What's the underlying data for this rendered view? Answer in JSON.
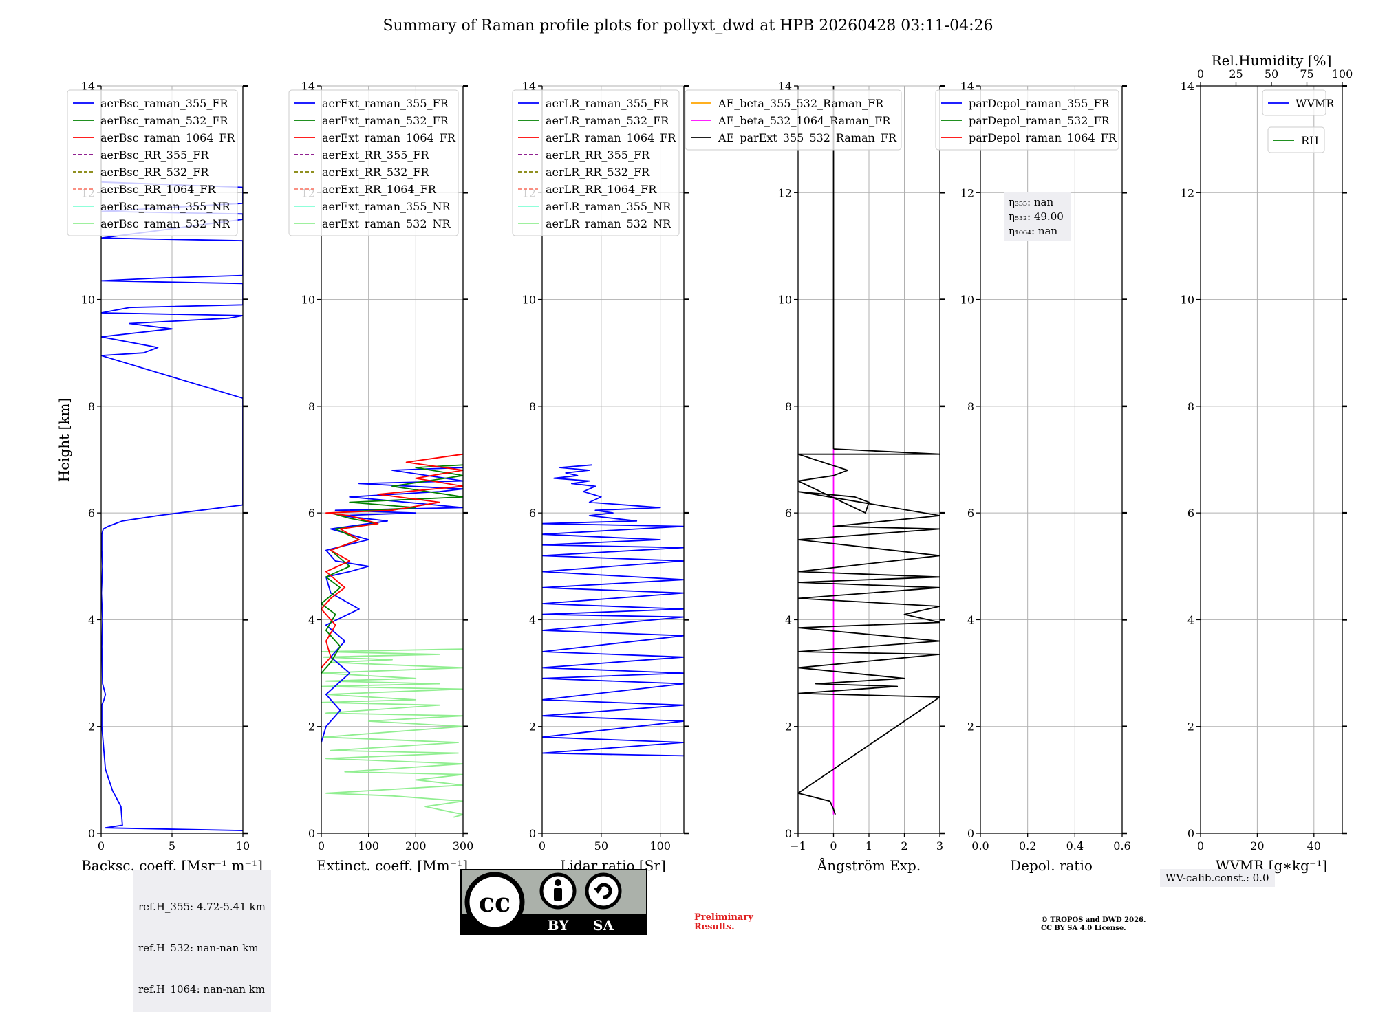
{
  "title": "Summary of Raman profile plots for pollyxt_dwd at HPB 20260428 03:11-04:26",
  "y_label": "Height [km]",
  "colors": {
    "blue": "#0000ff",
    "green": "#008000",
    "red": "#ff0000",
    "purple": "#800080",
    "olive": "#808000",
    "salmon": "#fa8072",
    "cyan": "#7fffd4",
    "lightgreen": "#90ee90",
    "orange": "#ffa500",
    "magenta": "#ff00ff",
    "black": "#000000"
  },
  "chart_data": [
    {
      "type": "line",
      "id": "bsc",
      "xlabel": "Backsc. coeff. [Msr$^{-1}$ m$^{-1}$]",
      "xlabel_display": "Backsc. coeff. [Msr⁻¹ m⁻¹]",
      "xlim": [
        0,
        10
      ],
      "xticks": [
        0,
        5,
        10
      ],
      "xtick_labels": [
        "0",
        "5",
        "10"
      ],
      "ylim": [
        0,
        14
      ],
      "yticks": [
        0,
        2,
        4,
        6,
        8,
        10,
        12,
        14
      ],
      "legend": [
        {
          "label": "aerBsc_raman_355_FR",
          "color": "#0000ff",
          "dash": false
        },
        {
          "label": "aerBsc_raman_532_FR",
          "color": "#008000",
          "dash": false
        },
        {
          "label": "aerBsc_raman_1064_FR",
          "color": "#ff0000",
          "dash": false
        },
        {
          "label": "aerBsc_RR_355_FR",
          "color": "#800080",
          "dash": true
        },
        {
          "label": "aerBsc_RR_532_FR",
          "color": "#808000",
          "dash": true
        },
        {
          "label": "aerBsc_RR_1064_FR",
          "color": "#fa8072",
          "dash": true
        },
        {
          "label": "aerBsc_raman_355_NR",
          "color": "#7fffd4",
          "dash": false
        },
        {
          "label": "aerBsc_raman_532_NR",
          "color": "#90ee90",
          "dash": false
        }
      ],
      "series": [
        {
          "name": "aerBsc_raman_355_FR",
          "color": "#0000ff",
          "x": [
            10,
            0.3,
            1.5,
            1.4,
            0.8,
            0.3,
            0.05,
            0.05,
            0.2,
            0.3,
            0.1,
            0.05,
            0.1,
            0.02,
            0.1,
            0.05,
            0.05,
            0.15,
            0.5,
            1.5,
            4,
            7,
            10,
            10,
            10,
            0,
            3,
            4,
            0,
            5,
            2,
            9,
            10,
            0,
            2,
            10,
            10,
            0,
            4,
            10,
            10,
            0,
            10,
            10,
            0,
            10,
            10,
            0
          ],
          "y": [
            0.05,
            0.1,
            0.15,
            0.5,
            0.8,
            1.2,
            2.0,
            2.4,
            2.5,
            2.6,
            2.8,
            3.5,
            4.0,
            4.5,
            5.0,
            5.3,
            5.6,
            5.7,
            5.75,
            5.85,
            5.95,
            6.05,
            6.15,
            8.1,
            8.15,
            8.95,
            9.0,
            9.1,
            9.3,
            9.45,
            9.55,
            9.65,
            9.7,
            9.75,
            9.85,
            9.9,
            10.3,
            10.35,
            10.4,
            10.45,
            11.1,
            11.15,
            11.5,
            11.6,
            11.65,
            11.8,
            12.1,
            12.2
          ]
        }
      ]
    },
    {
      "type": "line",
      "id": "ext",
      "xlabel": "Extinct. coeff. [Mm$^{-1}$]",
      "xlabel_display": "Extinct. coeff. [Mm⁻¹]",
      "xlim": [
        0,
        300
      ],
      "xticks": [
        0,
        100,
        200,
        300
      ],
      "xtick_labels": [
        "0",
        "100",
        "200",
        "300"
      ],
      "ylim": [
        0,
        14
      ],
      "yticks": [
        0,
        2,
        4,
        6,
        8,
        10,
        12,
        14
      ],
      "legend": [
        {
          "label": "aerExt_raman_355_FR",
          "color": "#0000ff",
          "dash": false
        },
        {
          "label": "aerExt_raman_532_FR",
          "color": "#008000",
          "dash": false
        },
        {
          "label": "aerExt_raman_1064_FR",
          "color": "#ff0000",
          "dash": false
        },
        {
          "label": "aerExt_RR_355_FR",
          "color": "#800080",
          "dash": true
        },
        {
          "label": "aerExt_RR_532_FR",
          "color": "#808000",
          "dash": true
        },
        {
          "label": "aerExt_RR_1064_FR",
          "color": "#fa8072",
          "dash": true
        },
        {
          "label": "aerExt_raman_355_NR",
          "color": "#7fffd4",
          "dash": false
        },
        {
          "label": "aerExt_raman_532_NR",
          "color": "#90ee90",
          "dash": false
        }
      ],
      "series": [
        {
          "name": "aerExt_raman_532_NR",
          "color": "#90ee90",
          "x": [
            280,
            300,
            220,
            300,
            150,
            10,
            300,
            200,
            300,
            50,
            300,
            10,
            290,
            20,
            290,
            5,
            300,
            100,
            300,
            10,
            250,
            0,
            200,
            10,
            300,
            0,
            250,
            10,
            200,
            0,
            300,
            20,
            150,
            5,
            250,
            0,
            300
          ],
          "y": [
            0.3,
            0.35,
            0.5,
            0.6,
            0.7,
            0.75,
            0.9,
            1.0,
            1.1,
            1.15,
            1.3,
            1.4,
            1.5,
            1.55,
            1.7,
            1.8,
            2.0,
            2.1,
            2.2,
            2.25,
            2.4,
            2.45,
            2.5,
            2.6,
            2.7,
            2.75,
            2.8,
            2.85,
            2.9,
            3.0,
            3.1,
            3.2,
            3.25,
            3.3,
            3.35,
            3.4,
            3.45
          ]
        },
        {
          "name": "aerExt_raman_355_FR",
          "color": "#0000ff",
          "x": [
            0,
            10,
            40,
            10,
            60,
            20,
            50,
            10,
            80,
            20,
            10,
            60,
            100,
            30,
            10,
            100,
            20,
            140,
            40,
            200,
            30,
            300,
            60,
            250,
            300,
            80,
            300,
            150,
            300
          ],
          "y": [
            1.7,
            2.0,
            2.3,
            2.6,
            3.0,
            3.3,
            3.6,
            3.9,
            4.2,
            4.5,
            4.8,
            4.9,
            5.0,
            5.1,
            5.3,
            5.5,
            5.7,
            5.85,
            5.95,
            6.0,
            6.05,
            6.1,
            6.3,
            6.4,
            6.45,
            6.55,
            6.6,
            6.8,
            6.85
          ]
        },
        {
          "name": "aerExt_raman_532_FR",
          "color": "#008000",
          "x": [
            0,
            20,
            40,
            10,
            30,
            0,
            40,
            10,
            60,
            20,
            80,
            30,
            120,
            60,
            20,
            200,
            60,
            300,
            150,
            300,
            200,
            300
          ],
          "y": [
            3.0,
            3.2,
            3.5,
            3.8,
            4.1,
            4.3,
            4.6,
            4.8,
            5.0,
            5.3,
            5.5,
            5.7,
            5.8,
            5.9,
            6.0,
            6.1,
            6.2,
            6.3,
            6.5,
            6.7,
            6.85,
            6.9
          ]
        },
        {
          "name": "aerExt_raman_1064_FR",
          "color": "#ff0000",
          "x": [
            0,
            20,
            10,
            30,
            0,
            20,
            50,
            10,
            60,
            20,
            80,
            40,
            120,
            60,
            10,
            150,
            250,
            120,
            300,
            200,
            300,
            180,
            300
          ],
          "y": [
            3.1,
            3.3,
            3.6,
            3.9,
            4.2,
            4.4,
            4.6,
            4.9,
            5.1,
            5.3,
            5.5,
            5.7,
            5.8,
            5.95,
            6.0,
            6.05,
            6.2,
            6.35,
            6.5,
            6.65,
            6.8,
            6.95,
            7.1
          ]
        }
      ]
    },
    {
      "type": "line",
      "id": "lr",
      "xlabel": "Lidar ratio [Sr]",
      "xlim": [
        0,
        120
      ],
      "xticks": [
        0,
        50,
        100
      ],
      "xtick_labels": [
        "0",
        "50",
        "100"
      ],
      "ylim": [
        0,
        14
      ],
      "yticks": [
        0,
        2,
        4,
        6,
        8,
        10,
        12,
        14
      ],
      "legend": [
        {
          "label": "aerLR_raman_355_FR",
          "color": "#0000ff",
          "dash": false
        },
        {
          "label": "aerLR_raman_532_FR",
          "color": "#008000",
          "dash": false
        },
        {
          "label": "aerLR_raman_1064_FR",
          "color": "#ff0000",
          "dash": false
        },
        {
          "label": "aerLR_RR_355_FR",
          "color": "#800080",
          "dash": true
        },
        {
          "label": "aerLR_RR_532_FR",
          "color": "#808000",
          "dash": true
        },
        {
          "label": "aerLR_RR_1064_FR",
          "color": "#fa8072",
          "dash": true
        },
        {
          "label": "aerLR_raman_355_NR",
          "color": "#7fffd4",
          "dash": false
        },
        {
          "label": "aerLR_raman_532_NR",
          "color": "#90ee90",
          "dash": false
        }
      ],
      "series": [
        {
          "name": "aerLR_raman_355_FR",
          "color": "#0000ff",
          "x": [
            120,
            0,
            120,
            0,
            120,
            0,
            120,
            0,
            120,
            0,
            120,
            0,
            120,
            0,
            120,
            0,
            120,
            0,
            120,
            0,
            120,
            0,
            120,
            0,
            120,
            0,
            120,
            0,
            100,
            0,
            120,
            0,
            80,
            40,
            60,
            45,
            100,
            40,
            50,
            35,
            45,
            25,
            40,
            10,
            30,
            20,
            40,
            15,
            42
          ],
          "y": [
            1.45,
            1.5,
            1.7,
            1.8,
            2.1,
            2.2,
            2.4,
            2.5,
            2.8,
            2.9,
            3.0,
            3.1,
            3.3,
            3.4,
            3.7,
            3.8,
            4.05,
            4.1,
            4.2,
            4.3,
            4.5,
            4.6,
            4.75,
            4.9,
            5.1,
            5.2,
            5.35,
            5.4,
            5.5,
            5.6,
            5.75,
            5.8,
            5.85,
            5.95,
            6.0,
            6.05,
            6.1,
            6.2,
            6.3,
            6.4,
            6.5,
            6.55,
            6.6,
            6.65,
            6.7,
            6.75,
            6.8,
            6.85,
            6.9
          ]
        }
      ]
    },
    {
      "type": "line",
      "id": "ae",
      "xlabel": "Ångström Exp.",
      "xlim": [
        -1,
        3
      ],
      "xticks": [
        -1,
        0,
        1,
        2,
        3
      ],
      "xtick_labels": [
        "−1",
        "0",
        "1",
        "2",
        "3"
      ],
      "ylim": [
        0,
        14
      ],
      "yticks": [
        0,
        2,
        4,
        6,
        8,
        10,
        12,
        14
      ],
      "legend": [
        {
          "label": "AE_beta_355_532_Raman_FR",
          "color": "#ffa500",
          "dash": false
        },
        {
          "label": "AE_beta_532_1064_Raman_FR",
          "color": "#ff00ff",
          "dash": false
        },
        {
          "label": "AE_parExt_355_532_Raman_FR",
          "color": "#000000",
          "dash": false
        }
      ],
      "series": [
        {
          "name": "AE_beta_532_1064_Raman_FR",
          "color": "#ff00ff",
          "x": [
            0,
            0
          ],
          "y": [
            0.35,
            7.2
          ]
        },
        {
          "name": "AE_parExt_355_532_Raman_FR",
          "color": "#000000",
          "x": [
            0.05,
            0,
            -0.1,
            -1,
            3,
            -1,
            1.8,
            -0.5,
            2,
            -1,
            3,
            -1,
            3,
            -1,
            3,
            2,
            3,
            -1,
            3,
            -1,
            3,
            -1,
            3,
            -1,
            3,
            0,
            3,
            -1,
            0.6,
            1.0,
            0.9,
            -1,
            0,
            0.4,
            -1,
            3,
            0
          ],
          "y": [
            0.35,
            0.45,
            0.6,
            0.75,
            2.55,
            2.62,
            2.75,
            2.8,
            2.9,
            3.1,
            3.35,
            3.4,
            3.6,
            3.85,
            3.95,
            4.1,
            4.25,
            4.4,
            4.6,
            4.7,
            4.8,
            4.9,
            5.2,
            5.5,
            5.7,
            5.75,
            5.95,
            6.4,
            6.3,
            6.2,
            6.0,
            6.6,
            6.7,
            6.8,
            7.1,
            7.1,
            7.2
          ]
        },
        {
          "name": "AE_parExt_355_532_Raman_FR_upper",
          "color": "#000000",
          "x": [
            0,
            0
          ],
          "y": [
            7.2,
            14
          ]
        }
      ]
    },
    {
      "type": "line",
      "id": "depol",
      "xlabel": "Depol. ratio",
      "xlim": [
        0,
        0.6
      ],
      "xticks": [
        0,
        0.2,
        0.4,
        0.6
      ],
      "xtick_labels": [
        "0.0",
        "0.2",
        "0.4",
        "0.6"
      ],
      "ylim": [
        0,
        14
      ],
      "yticks": [
        0,
        2,
        4,
        6,
        8,
        10,
        12,
        14
      ],
      "legend": [
        {
          "label": "parDepol_raman_355_FR",
          "color": "#0000ff",
          "dash": false
        },
        {
          "label": "parDepol_raman_532_FR",
          "color": "#008000",
          "dash": false
        },
        {
          "label": "parDepol_raman_1064_FR",
          "color": "#ff0000",
          "dash": false
        }
      ],
      "annotation": {
        "eta355": "η₃₅₅: nan",
        "eta532": "η₅₃₂: 49.00",
        "eta1064": "η₁₀₆₄: nan"
      },
      "series": []
    },
    {
      "type": "line",
      "id": "wv",
      "xlabel": "WVMR [$g*kg^{-1}$]",
      "xlabel_display": "WVMR [g∗kg⁻¹]",
      "xlim": [
        0,
        50
      ],
      "xticks": [
        0,
        20,
        40
      ],
      "xtick_labels": [
        "0",
        "20",
        "40"
      ],
      "top_label": "Rel.Humidity [%]",
      "top_xlim": [
        0,
        100
      ],
      "top_xticks": [
        0,
        25,
        50,
        75,
        100
      ],
      "top_xtick_labels": [
        "0",
        "25",
        "50",
        "75",
        "100"
      ],
      "ylim": [
        0,
        14
      ],
      "yticks": [
        0,
        2,
        4,
        6,
        8,
        10,
        12,
        14
      ],
      "legend": [
        {
          "label": "WVMR",
          "color": "#0000ff",
          "dash": false
        }
      ],
      "legend2": [
        {
          "label": "RH",
          "color": "#008000",
          "dash": false
        }
      ],
      "series": []
    }
  ],
  "ref_heights": [
    "ref.H_355: 4.72-5.41 km",
    "ref.H_532: nan-nan km",
    "ref.H_1064: nan-nan km"
  ],
  "wv_calib": "WV-calib.const.: 0.0",
  "license": {
    "cc": "cc",
    "by": "BY",
    "sa": "SA"
  },
  "preliminary": "Preliminary\nResults.",
  "copyright": "© TROPOS and DWD 2026.\nCC BY SA 4.0 License."
}
